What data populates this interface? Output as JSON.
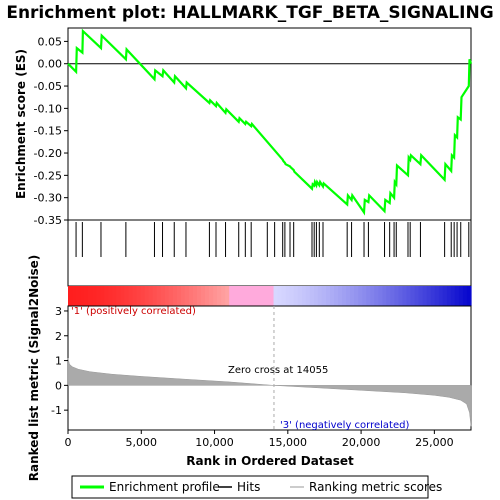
{
  "title": "Enrichment plot: HALLMARK_TGF_BETA_SIGNALING",
  "es_panel": {
    "ylabel": "Enrichment score (ES)",
    "ylim": [
      -0.35,
      0.08
    ],
    "yticks": [
      "0.05",
      "0.00",
      "-0.05",
      "-0.10",
      "-0.15",
      "-0.20",
      "-0.25",
      "-0.30",
      "-0.35"
    ],
    "ytick_values": [
      0.05,
      0.0,
      -0.05,
      -0.1,
      -0.15,
      -0.2,
      -0.25,
      -0.3,
      -0.35
    ]
  },
  "metric_panel": {
    "ylabel": "Ranked list metric (Signal2Noise)",
    "ylim": [
      -1.8,
      3.2
    ],
    "yticks": [
      "3",
      "2",
      "1",
      "0",
      "-1"
    ],
    "ytick_values": [
      3,
      2,
      1,
      0,
      -1
    ],
    "zero_cross_label": "Zero cross at 14055",
    "zero_cross": 14055,
    "pos_label": "'1' (positively correlated)",
    "neg_label": "'3' (negatively correlated)"
  },
  "xaxis": {
    "xlabel": "Rank in Ordered Dataset",
    "xlim": [
      0,
      27500
    ],
    "xticks": [
      "0",
      "5,000",
      "10,000",
      "15,000",
      "20,000",
      "25,000"
    ],
    "xtick_values": [
      0,
      5000,
      10000,
      15000,
      20000,
      25000
    ]
  },
  "legend": {
    "items": [
      {
        "label": "Enrichment profile",
        "color": "#00ff00"
      },
      {
        "label": "Hits",
        "color": "#000000"
      },
      {
        "label": "Ranking metric scores",
        "color": "#bbbbbb"
      }
    ]
  },
  "colors": {
    "es_line": "#00ff00",
    "pos_band": "#ff0000",
    "neg_band": "#0000cc",
    "metric_fill": "#aaaaaa"
  },
  "chart_data": {
    "type": "line",
    "title": "Enrichment plot: HALLMARK_TGF_BETA_SIGNALING",
    "xlabel": "Rank in Ordered Dataset",
    "ylabel": "Enrichment score (ES)",
    "series": [
      {
        "name": "Enrichment profile",
        "x": [
          0,
          550,
          600,
          980,
          1020,
          2250,
          2300,
          3950,
          4000,
          5900,
          5950,
          6450,
          6500,
          7250,
          7300,
          8050,
          8100,
          9650,
          9700,
          10100,
          10150,
          10750,
          10800,
          11650,
          11700,
          12100,
          12150,
          12500,
          12550,
          14650,
          14700,
          14800,
          14850,
          15150,
          15200,
          15400,
          15450,
          16650,
          16700,
          16800,
          16850,
          16950,
          17000,
          17150,
          17200,
          17400,
          17450,
          19050,
          19100,
          19350,
          19400,
          20200,
          20250,
          20500,
          20550,
          21600,
          21650,
          21950,
          22000,
          22250,
          22300,
          22400,
          22450,
          23200,
          23250,
          23350,
          23400,
          24050,
          24100,
          25700,
          25750,
          26150,
          26200,
          26350,
          26400,
          26550,
          26600,
          26800,
          26850,
          27350,
          27400,
          27500
        ],
        "y": [
          0.0,
          -0.018,
          0.035,
          0.025,
          0.073,
          0.035,
          0.063,
          0.01,
          0.032,
          -0.035,
          -0.015,
          -0.028,
          -0.015,
          -0.042,
          -0.028,
          -0.055,
          -0.042,
          -0.088,
          -0.082,
          -0.095,
          -0.088,
          -0.11,
          -0.102,
          -0.13,
          -0.122,
          -0.135,
          -0.13,
          -0.14,
          -0.135,
          -0.215,
          -0.218,
          -0.222,
          -0.225,
          -0.23,
          -0.232,
          -0.238,
          -0.242,
          -0.28,
          -0.27,
          -0.273,
          -0.265,
          -0.272,
          -0.265,
          -0.272,
          -0.265,
          -0.275,
          -0.268,
          -0.315,
          -0.295,
          -0.305,
          -0.295,
          -0.333,
          -0.305,
          -0.31,
          -0.295,
          -0.33,
          -0.305,
          -0.312,
          -0.29,
          -0.3,
          -0.265,
          -0.27,
          -0.228,
          -0.25,
          -0.21,
          -0.215,
          -0.205,
          -0.225,
          -0.205,
          -0.26,
          -0.225,
          -0.24,
          -0.205,
          -0.21,
          -0.16,
          -0.165,
          -0.12,
          -0.125,
          -0.075,
          -0.05,
          0.01,
          0.0
        ]
      }
    ],
    "hits": [
      550,
      980,
      2250,
      3950,
      5900,
      6450,
      7250,
      8050,
      9650,
      10100,
      10750,
      11650,
      12100,
      12500,
      13600,
      14100,
      14650,
      14800,
      15150,
      15400,
      16650,
      16800,
      16950,
      17150,
      17400,
      19050,
      19350,
      20200,
      20500,
      21600,
      21950,
      22250,
      22400,
      23200,
      23350,
      24050,
      25700,
      26150,
      26350,
      26550,
      26800,
      27350
    ],
    "metric_curve": {
      "name": "Ranking metric scores",
      "x": [
        0,
        100,
        300,
        700,
        1500,
        3000,
        5000,
        8000,
        11000,
        14055,
        17000,
        20000,
        23000,
        25000,
        26000,
        26800,
        27200,
        27400,
        27500
      ],
      "y": [
        1.1,
        0.85,
        0.75,
        0.65,
        0.55,
        0.45,
        0.36,
        0.25,
        0.14,
        0.0,
        -0.1,
        -0.2,
        -0.3,
        -0.4,
        -0.48,
        -0.6,
        -0.75,
        -1.1,
        -1.65
      ]
    }
  }
}
